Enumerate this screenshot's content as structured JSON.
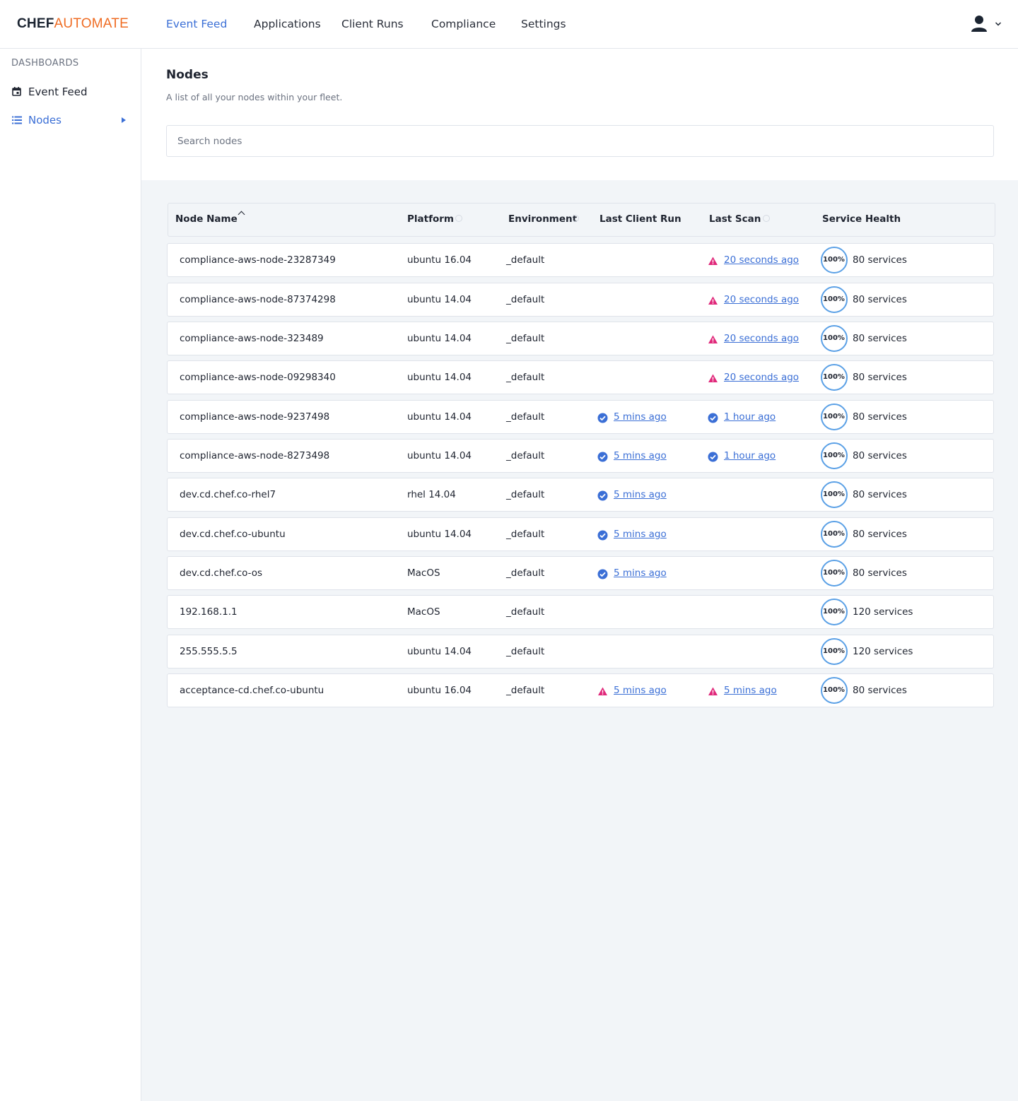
{
  "brand": {
    "part1": "CHEF",
    "part2": "AUTOMATE"
  },
  "nav": [
    {
      "label": "Event Feed",
      "active": true
    },
    {
      "label": "Applications",
      "active": false
    },
    {
      "label": "Client Runs",
      "active": false
    },
    {
      "label": "Compliance",
      "active": false
    },
    {
      "label": "Settings",
      "active": false
    }
  ],
  "sidebar": {
    "heading": "DASHBOARDS",
    "items": [
      {
        "label": "Event Feed",
        "icon": "calendar-icon",
        "active": false
      },
      {
        "label": "Nodes",
        "icon": "list-icon",
        "active": true
      }
    ]
  },
  "page": {
    "title": "Nodes",
    "subtitle": "A list of all your nodes within your fleet.",
    "search_placeholder": "Search nodes"
  },
  "table": {
    "columns": [
      "Node Name",
      "Platform",
      "Environment",
      "Last Client Run",
      "Last Scan",
      "Service Health"
    ],
    "rows": [
      {
        "name": "compliance-aws-node-23287349",
        "platform": "ubuntu 16.04",
        "environment": "_default",
        "client_run": null,
        "scan": {
          "status": "warning",
          "text": "20 seconds ago"
        },
        "health": "100%",
        "services": "80 services"
      },
      {
        "name": "compliance-aws-node-87374298",
        "platform": "ubuntu 14.04",
        "environment": "_default",
        "client_run": null,
        "scan": {
          "status": "warning",
          "text": "20 seconds ago"
        },
        "health": "100%",
        "services": "80 services"
      },
      {
        "name": "compliance-aws-node-323489",
        "platform": "ubuntu 14.04",
        "environment": "_default",
        "client_run": null,
        "scan": {
          "status": "warning",
          "text": "20 seconds ago"
        },
        "health": "100%",
        "services": "80 services"
      },
      {
        "name": "compliance-aws-node-09298340",
        "platform": "ubuntu 14.04",
        "environment": "_default",
        "client_run": null,
        "scan": {
          "status": "warning",
          "text": "20 seconds ago"
        },
        "health": "100%",
        "services": "80 services"
      },
      {
        "name": "compliance-aws-node-9237498",
        "platform": "ubuntu 14.04",
        "environment": "_default",
        "client_run": {
          "status": "success",
          "text": "5 mins ago"
        },
        "scan": {
          "status": "success",
          "text": "1 hour ago"
        },
        "health": "100%",
        "services": "80 services"
      },
      {
        "name": "compliance-aws-node-8273498",
        "platform": "ubuntu 14.04",
        "environment": "_default",
        "client_run": {
          "status": "success",
          "text": "5 mins ago"
        },
        "scan": {
          "status": "success",
          "text": "1 hour ago"
        },
        "health": "100%",
        "services": "80 services"
      },
      {
        "name": "dev.cd.chef.co-rhel7",
        "platform": "rhel 14.04",
        "environment": "_default",
        "client_run": {
          "status": "success",
          "text": "5 mins ago"
        },
        "scan": null,
        "health": "100%",
        "services": "80 services"
      },
      {
        "name": "dev.cd.chef.co-ubuntu",
        "platform": "ubuntu 14.04",
        "environment": "_default",
        "client_run": {
          "status": "success",
          "text": "5 mins ago"
        },
        "scan": null,
        "health": "100%",
        "services": "80 services"
      },
      {
        "name": "dev.cd.chef.co-os",
        "platform": "MacOS",
        "environment": "_default",
        "client_run": {
          "status": "success",
          "text": "5 mins ago"
        },
        "scan": null,
        "health": "100%",
        "services": "80 services"
      },
      {
        "name": "192.168.1.1",
        "platform": "MacOS",
        "environment": "_default",
        "client_run": null,
        "scan": null,
        "health": "100%",
        "services": "120 services"
      },
      {
        "name": "255.555.5.5",
        "platform": "ubuntu 14.04",
        "environment": "_default",
        "client_run": null,
        "scan": null,
        "health": "100%",
        "services": "120 services"
      },
      {
        "name": "acceptance-cd.chef.co-ubuntu",
        "platform": "ubuntu 16.04",
        "environment": "_default",
        "client_run": {
          "status": "warning",
          "text": "5 mins ago"
        },
        "scan": {
          "status": "warning",
          "text": "5 mins ago"
        },
        "health": "100%",
        "services": "80 services"
      }
    ]
  },
  "colors": {
    "accent": "#3b6fd6",
    "brand_orange": "#ef6c23",
    "warning": "#e0287a",
    "success": "#3b6fd6",
    "health_ring": "#5aa0e6"
  }
}
